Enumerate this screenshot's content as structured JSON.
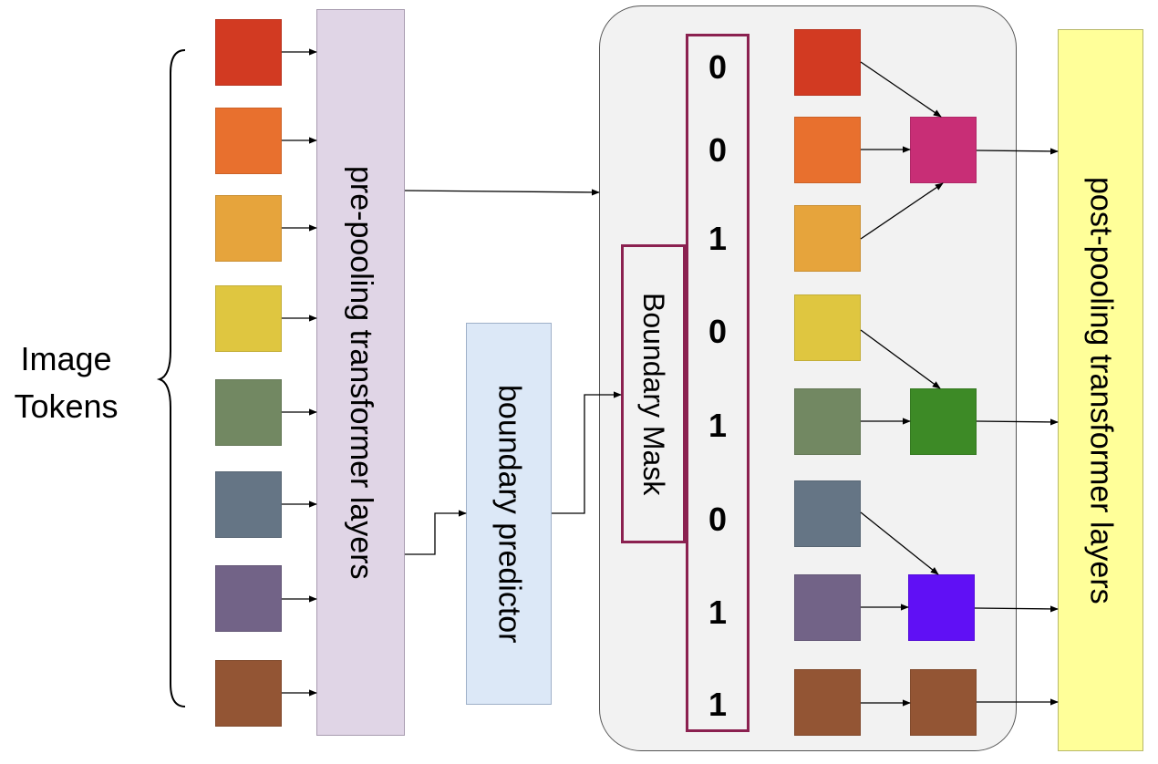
{
  "labels": {
    "image_tokens_line1": "Image",
    "image_tokens_line2": "Tokens",
    "pre_pooling": "pre-pooling transformer layers",
    "boundary_predictor": "boundary predictor",
    "boundary_mask": "Boundary Mask",
    "post_pooling": "post-pooling transformer layers"
  },
  "mask_bits": [
    "0",
    "0",
    "1",
    "0",
    "1",
    "0",
    "1",
    "1"
  ],
  "colors": {
    "input_tokens": [
      "#d23a22",
      "#e8702e",
      "#e6a43c",
      "#dfc640",
      "#728862",
      "#657585",
      "#726387",
      "#935534"
    ],
    "pooled_tokens": [
      "#c82e76",
      "#3d8a26",
      "#6010f5",
      "#935534"
    ],
    "pre_pooling_fill": "#e0d5e6",
    "boundary_predictor_fill": "#dce8f7",
    "mask_group_fill": "#f2f2f2",
    "post_pooling_fill": "#ffff99",
    "mask_border": "#8b2150"
  }
}
